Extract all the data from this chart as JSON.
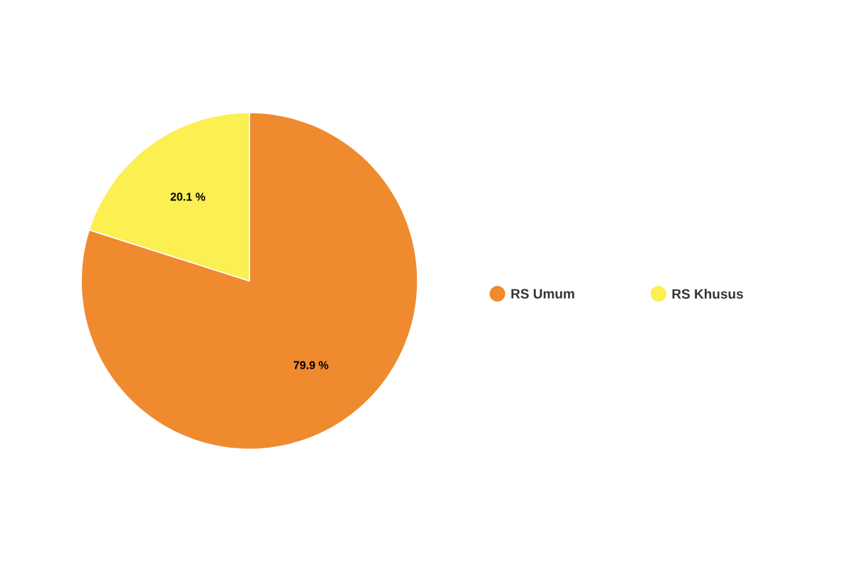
{
  "chart_data": {
    "type": "pie",
    "categories": [
      "RS Umum",
      "RS Khusus"
    ],
    "values": [
      79.9,
      20.1
    ],
    "colors": [
      "#ef8a2f",
      "#fbef52"
    ],
    "value_labels": [
      "79.9 %",
      "20.1 %"
    ],
    "legend": "right"
  }
}
